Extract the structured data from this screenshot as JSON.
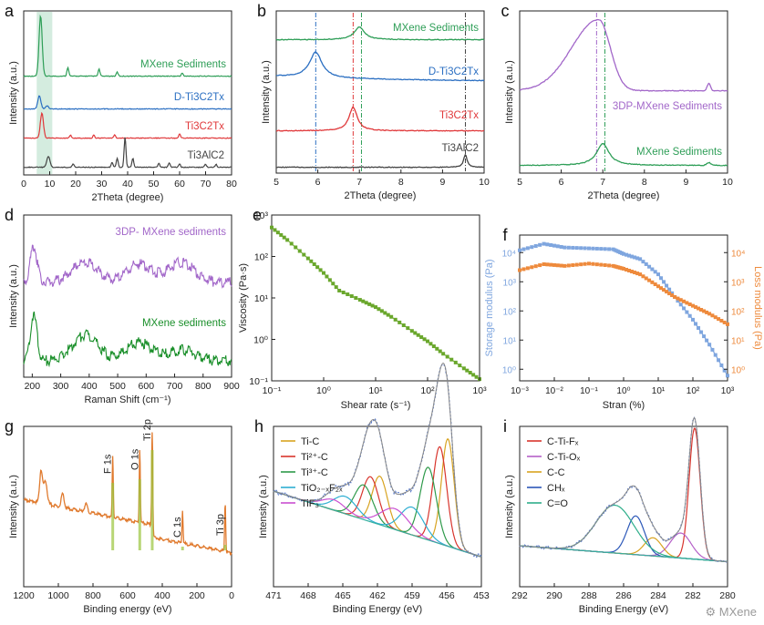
{
  "chart_data": [
    {
      "panel": "a",
      "type": "line",
      "xlabel": "2Theta (degree)",
      "ylabel": "Intensity (a.u.)",
      "xlim": [
        0,
        80
      ],
      "xticks": [
        "0",
        "10",
        "20",
        "30",
        "40",
        "50",
        "60",
        "70",
        "80"
      ],
      "highlight_band": [
        5,
        11
      ],
      "series": [
        {
          "name": "MXene Sediments",
          "color": "#2e9e57",
          "peaks": [
            [
              6.5,
              120
            ],
            [
              17,
              18
            ],
            [
              29,
              14
            ],
            [
              36,
              8
            ],
            [
              61,
              6
            ]
          ]
        },
        {
          "name": "D-Ti3C2Tx",
          "color": "#2b6fc2",
          "peaks": [
            [
              6,
              26
            ],
            [
              9,
              6
            ]
          ]
        },
        {
          "name": "Ti3C2Tx",
          "color": "#e0383a",
          "peaks": [
            [
              7,
              50
            ],
            [
              18,
              6
            ],
            [
              27,
              6
            ],
            [
              35,
              6
            ],
            [
              60,
              8
            ]
          ]
        },
        {
          "name": "Ti3AlC2",
          "color": "#444444",
          "peaks": [
            [
              9.5,
              22
            ],
            [
              19,
              7
            ],
            [
              34,
              10
            ],
            [
              36,
              18
            ],
            [
              39,
              60
            ],
            [
              42,
              18
            ],
            [
              52,
              8
            ],
            [
              56,
              8
            ],
            [
              60,
              6
            ],
            [
              70,
              6
            ],
            [
              74,
              6
            ]
          ]
        }
      ]
    },
    {
      "panel": "b",
      "type": "line",
      "xlabel": "2Theta (degree)",
      "ylabel": "Intensity (a.u.)",
      "xlim": [
        5,
        10
      ],
      "xticks": [
        "5",
        "6",
        "7",
        "8",
        "9",
        "10"
      ],
      "ref_lines": [
        5.95,
        6.85,
        7.05,
        9.55
      ],
      "series": [
        {
          "name": "MXene Sediments",
          "color": "#2e9e57",
          "peak": [
            7.0,
            0.15,
            14
          ]
        },
        {
          "name": "D-Ti3C2Tx",
          "color": "#2b6fc2",
          "peak": [
            5.95,
            0.18,
            28
          ]
        },
        {
          "name": "Ti3C2Tx",
          "color": "#e0383a",
          "peak": [
            6.85,
            0.12,
            26
          ]
        },
        {
          "name": "Ti3AlC2",
          "color": "#444444",
          "peak": [
            9.55,
            0.05,
            14
          ]
        }
      ]
    },
    {
      "panel": "c",
      "type": "line",
      "xlabel": "2Theta (degree)",
      "ylabel": "Intensity (a.u.)",
      "xlim": [
        5,
        10
      ],
      "xticks": [
        "5",
        "6",
        "7",
        "8",
        "9",
        "10"
      ],
      "ref_lines": [
        6.85,
        7.05
      ],
      "series": [
        {
          "name": "3DP-MXene Sediments",
          "color": "#a267c9",
          "peak": [
            6.9,
            0.6,
            78
          ]
        },
        {
          "name": "MXene Sediments",
          "color": "#2e9e57",
          "peak": [
            7.0,
            0.18,
            24
          ]
        }
      ]
    },
    {
      "panel": "d",
      "type": "line",
      "xlabel": "Raman Shift (cm⁻¹)",
      "ylabel": "Intensity (a.u.)",
      "xlim": [
        170,
        900
      ],
      "xticks": [
        "200",
        "300",
        "400",
        "500",
        "600",
        "700",
        "800",
        "900"
      ],
      "series": [
        {
          "name": "3DP- MXene sediments",
          "color": "#a267c9",
          "peaks": [
            [
              205,
              40
            ],
            [
              385,
              22
            ],
            [
              575,
              20
            ],
            [
              725,
              22
            ]
          ]
        },
        {
          "name": "MXene sediments",
          "color": "#1a8f2a",
          "peaks": [
            [
              205,
              50
            ],
            [
              385,
              28
            ],
            [
              575,
              20
            ],
            [
              725,
              12
            ]
          ]
        }
      ]
    },
    {
      "panel": "e",
      "type": "scatter",
      "xlabel": "Shear rate (s⁻¹)",
      "ylabel": "Viscosity (Pa·s)",
      "xscale": "log",
      "yscale": "log",
      "xlim": [
        0.1,
        1000
      ],
      "ylim": [
        0.1,
        1000
      ],
      "xticks": [
        "10⁻¹",
        "10⁰",
        "10¹",
        "10²",
        "10³"
      ],
      "yticks": [
        "10⁻¹",
        "10⁰",
        "10¹",
        "10²",
        "10³"
      ],
      "color": "#6aa72c",
      "x": [
        0.1,
        0.2,
        0.5,
        1,
        2,
        5,
        10,
        20,
        50,
        100,
        200,
        500,
        1000
      ],
      "y": [
        500,
        250,
        90,
        40,
        15,
        9,
        6,
        3.5,
        1.6,
        0.9,
        0.45,
        0.2,
        0.11
      ]
    },
    {
      "panel": "f",
      "type": "scatter",
      "xlabel": "Stran (%)",
      "ylabel_left": "Storage modulus (Pa)",
      "ylabel_right": "Loss modulus (Pa)",
      "xscale": "log",
      "yscale": "log",
      "xlim": [
        0.001,
        1000
      ],
      "ylim": [
        0.4,
        40000
      ],
      "xticks": [
        "10⁻³",
        "10⁻²",
        "10⁻¹",
        "10⁰",
        "10¹",
        "10²",
        "10³"
      ],
      "yticks": [
        "10⁰",
        "10¹",
        "10²",
        "10³",
        "10⁴"
      ],
      "series": [
        {
          "name": "Storage modulus",
          "color": "#7fa6df",
          "x": [
            0.001,
            0.005,
            0.02,
            0.1,
            0.5,
            1,
            3,
            10,
            30,
            100,
            300,
            1000
          ],
          "y": [
            12000,
            20000,
            15000,
            14000,
            13000,
            9000,
            6000,
            1800,
            300,
            50,
            7,
            0.6
          ]
        },
        {
          "name": "Loss modulus",
          "color": "#ee8a3c",
          "x": [
            0.001,
            0.005,
            0.02,
            0.1,
            0.5,
            1,
            3,
            10,
            30,
            100,
            300,
            1000
          ],
          "y": [
            2500,
            4000,
            3500,
            4200,
            3500,
            2800,
            1800,
            700,
            300,
            150,
            80,
            35
          ]
        }
      ]
    },
    {
      "panel": "g",
      "type": "line",
      "xlabel": "Binding energy (eV)",
      "ylabel": "Intensity (a.u.)",
      "xlim": [
        1200,
        0
      ],
      "xticks": [
        "1200",
        "1000",
        "800",
        "600",
        "400",
        "200",
        "0"
      ],
      "color": "#e07a2e",
      "labels": [
        "F 1s",
        "O 1s",
        "Ti 2p",
        "C 1s",
        "Ti 3p"
      ],
      "label_positions_ev": [
        686,
        530,
        458,
        283,
        37
      ]
    },
    {
      "panel": "h",
      "type": "line",
      "xlabel": "Binding Energy (eV)",
      "ylabel": "Intensity (a.u.)",
      "xlim": [
        471,
        453
      ],
      "xticks": [
        "471",
        "468",
        "465",
        "462",
        "459",
        "456",
        "453"
      ],
      "legend": [
        "Ti-C",
        "Ti²⁺-C",
        "Ti³⁺-C",
        "TiO₂₋ₓF₂ₓ",
        "TiF₃"
      ],
      "components": [
        {
          "name": "Ti-C",
          "color": "#d8a320",
          "peaks": [
            [
              455.9,
              0.55,
              62
            ],
            [
              461.8,
              0.65,
              28
            ]
          ]
        },
        {
          "name": "Ti2+-C",
          "color": "#d8342c",
          "peaks": [
            [
              456.6,
              0.6,
              56
            ],
            [
              462.6,
              0.7,
              26
            ]
          ]
        },
        {
          "name": "Ti3+-C",
          "color": "#2e9a4a",
          "peaks": [
            [
              457.6,
              0.7,
              42
            ],
            [
              463.2,
              0.8,
              20
            ]
          ]
        },
        {
          "name": "TiO2-xF2x",
          "color": "#2eaed2",
          "peaks": [
            [
              459.0,
              1.0,
              16
            ],
            [
              464.8,
              1.0,
              10
            ]
          ]
        },
        {
          "name": "TiF3",
          "color": "#c94fd0",
          "peaks": [
            [
              460.5,
              1.2,
              12
            ],
            [
              465.8,
              1.0,
              6
            ]
          ]
        }
      ]
    },
    {
      "panel": "i",
      "type": "line",
      "xlabel": "Binding Energy (eV)",
      "ylabel": "Intensity (a.u.)",
      "xlim": [
        292,
        280
      ],
      "xticks": [
        "292",
        "290",
        "288",
        "286",
        "284",
        "282",
        "280"
      ],
      "legend": [
        "C-Ti-Fₓ",
        "C-Ti-Oₓ",
        "C-C",
        "CHₓ",
        "C=O"
      ],
      "components": [
        {
          "name": "C-Ti-Fx",
          "color": "#d8342c",
          "peaks": [
            [
              281.9,
              0.32,
              115
            ]
          ]
        },
        {
          "name": "C-Ti-Ox",
          "color": "#b560c8",
          "peaks": [
            [
              282.7,
              0.6,
              22
            ]
          ]
        },
        {
          "name": "C-C",
          "color": "#d8a320",
          "peaks": [
            [
              284.3,
              0.5,
              16
            ]
          ]
        },
        {
          "name": "CHx",
          "color": "#2b57b8",
          "peaks": [
            [
              285.3,
              0.5,
              34
            ]
          ]
        },
        {
          "name": "C=O",
          "color": "#2eae8a",
          "peaks": [
            [
              286.5,
              1.1,
              42
            ]
          ]
        }
      ]
    }
  ],
  "watermark": "MXene"
}
